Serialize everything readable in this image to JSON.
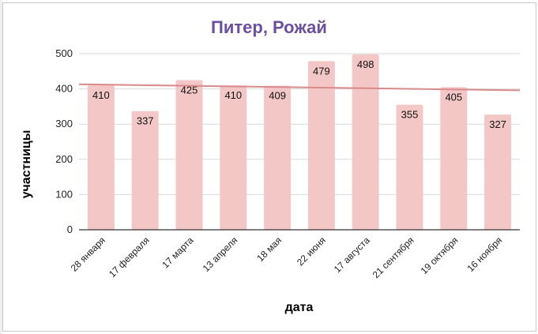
{
  "chart_data": {
    "type": "bar",
    "title": "Питер, Рожай",
    "xlabel": "дата",
    "ylabel": "участницы",
    "categories": [
      "28 января",
      "17 февраля",
      "17 марта",
      "13 апреля",
      "18 мая",
      "22 июня",
      "17 августа",
      "21 сентября",
      "19 октября",
      "16 ноября"
    ],
    "values": [
      410,
      337,
      425,
      410,
      409,
      479,
      498,
      355,
      405,
      327
    ],
    "ylim": [
      0,
      500
    ],
    "yticks": [
      0,
      100,
      200,
      300,
      400,
      500
    ],
    "grid": true,
    "trendline": {
      "start": 413,
      "end": 396
    },
    "colors": {
      "bar": "#f4c7c7",
      "trend": "#d98a8a",
      "title": "#6b4fa0",
      "grid": "#d9d9d9",
      "axis": "#333333"
    }
  }
}
